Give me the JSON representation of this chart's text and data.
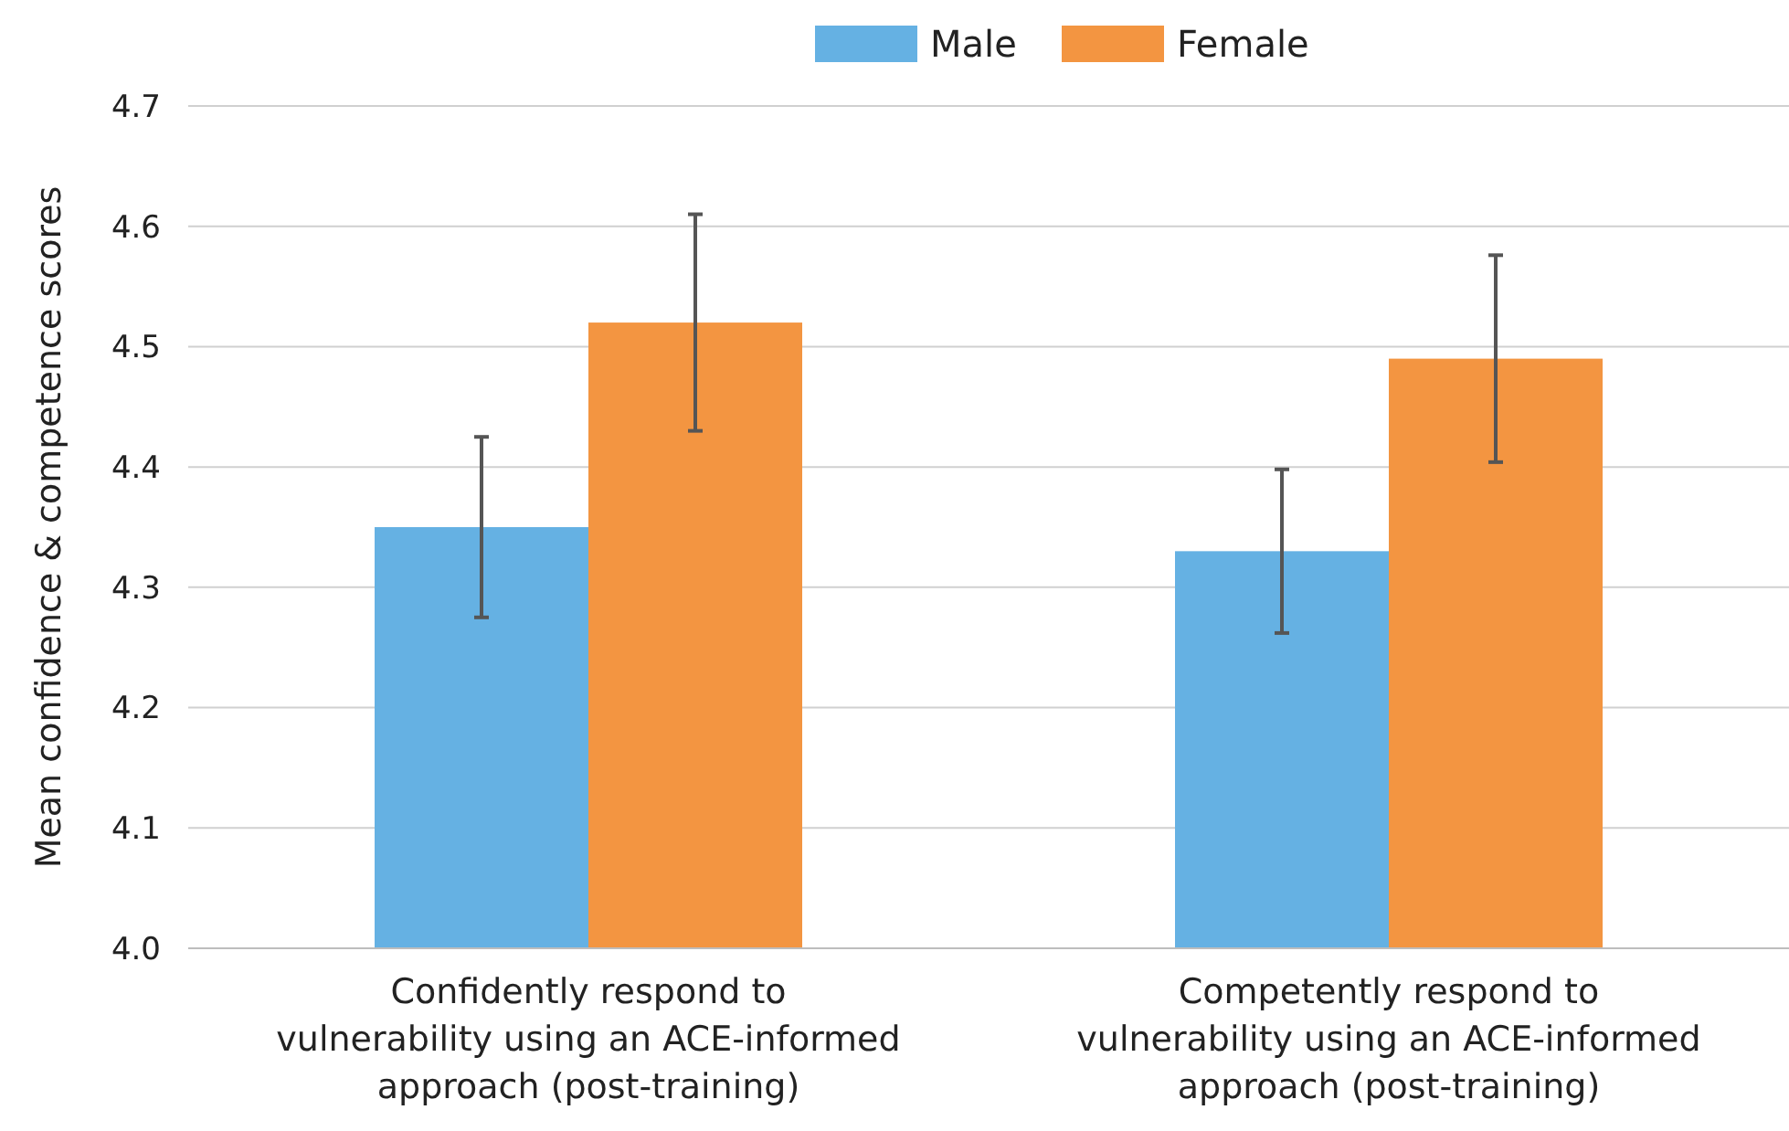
{
  "chart_data": {
    "type": "bar",
    "ylabel": "Mean confidence & competence scores",
    "categories": [
      "Confidently respond to vulnerability using an ACE-informed approach (post-training)",
      "Competently respond to vulnerability using an ACE-informed approach (post-training)"
    ],
    "series": [
      {
        "name": "Male",
        "color": "#65b1e3",
        "values": [
          4.35,
          4.33
        ],
        "errors": [
          0.075,
          0.068
        ]
      },
      {
        "name": "Female",
        "color": "#f39541",
        "values": [
          4.52,
          4.49
        ],
        "errors": [
          0.09,
          0.086
        ]
      }
    ],
    "ylim": [
      4.0,
      4.7
    ],
    "yticks": [
      {
        "value": 4.0,
        "label": "4.0"
      },
      {
        "value": 4.1,
        "label": "4.1"
      },
      {
        "value": 4.2,
        "label": "4.2"
      },
      {
        "value": 4.3,
        "label": "4.3"
      },
      {
        "value": 4.4,
        "label": "4.4"
      },
      {
        "value": 4.5,
        "label": "4.5"
      },
      {
        "value": 4.6,
        "label": "4.6"
      },
      {
        "value": 4.7,
        "label": "4.7"
      }
    ],
    "grid": "y",
    "legend": "top"
  }
}
